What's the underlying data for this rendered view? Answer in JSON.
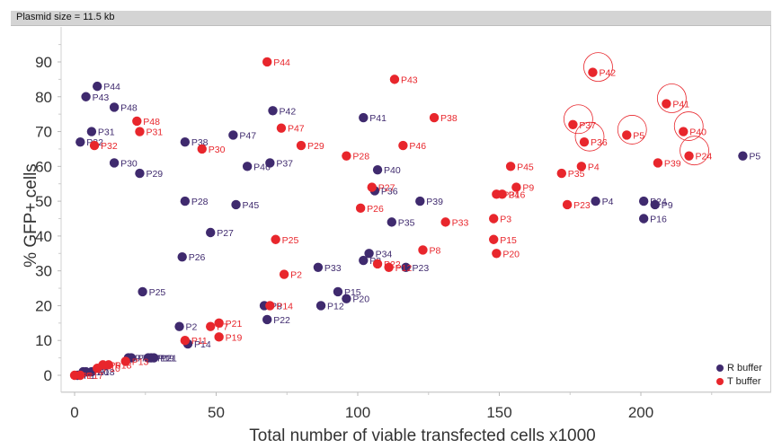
{
  "header": {
    "title": "Plasmid size = 11.5 kb"
  },
  "legend": [
    {
      "label": "R buffer",
      "color": "#3f2a6e"
    },
    {
      "label": "T buffer",
      "color": "#e8262c"
    }
  ],
  "chart_data": {
    "type": "scatter",
    "title": "Plasmid size = 11.5 kb",
    "xlabel": "Total number of viable transfected cells x1000",
    "ylabel": "% GFP+ cells",
    "xlim": [
      -5,
      245
    ],
    "ylim": [
      -5,
      95
    ],
    "xticks": [
      0,
      50,
      100,
      150,
      200
    ],
    "yticks": [
      0,
      10,
      20,
      30,
      40,
      50,
      60,
      70,
      80,
      90
    ],
    "grid": false,
    "legend_position": "bottom-right",
    "series": [
      {
        "name": "R buffer",
        "color": "#3f2a6e",
        "points": [
          {
            "label": "P1",
            "x": 1,
            "y": 0
          },
          {
            "label": "P17",
            "x": 3,
            "y": 1
          },
          {
            "label": "P10",
            "x": 4,
            "y": 1
          },
          {
            "label": "P18",
            "x": 6,
            "y": 1
          },
          {
            "label": "P7",
            "x": 19,
            "y": 5
          },
          {
            "label": "P11",
            "x": 26,
            "y": 5
          },
          {
            "label": "P19",
            "x": 27,
            "y": 5
          },
          {
            "label": "P13",
            "x": 20,
            "y": 5
          },
          {
            "label": "P21",
            "x": 28,
            "y": 5
          },
          {
            "label": "P2",
            "x": 37,
            "y": 14
          },
          {
            "label": "P14",
            "x": 40,
            "y": 9
          },
          {
            "label": "P25",
            "x": 24,
            "y": 24
          },
          {
            "label": "P26",
            "x": 38,
            "y": 34
          },
          {
            "label": "P27",
            "x": 48,
            "y": 41
          },
          {
            "label": "P28",
            "x": 39,
            "y": 50
          },
          {
            "label": "P29",
            "x": 23,
            "y": 58
          },
          {
            "label": "P30",
            "x": 14,
            "y": 61
          },
          {
            "label": "P32",
            "x": 2,
            "y": 67
          },
          {
            "label": "P31",
            "x": 6,
            "y": 70
          },
          {
            "label": "P43",
            "x": 4,
            "y": 80
          },
          {
            "label": "P44",
            "x": 8,
            "y": 83
          },
          {
            "label": "P48",
            "x": 14,
            "y": 77
          },
          {
            "label": "P38",
            "x": 39,
            "y": 67
          },
          {
            "label": "P47",
            "x": 56,
            "y": 69
          },
          {
            "label": "P46",
            "x": 61,
            "y": 60
          },
          {
            "label": "P37",
            "x": 69,
            "y": 61
          },
          {
            "label": "P42",
            "x": 70,
            "y": 76
          },
          {
            "label": "P45",
            "x": 57,
            "y": 49
          },
          {
            "label": "P8",
            "x": 67,
            "y": 20
          },
          {
            "label": "P22",
            "x": 68,
            "y": 16
          },
          {
            "label": "P33",
            "x": 86,
            "y": 31
          },
          {
            "label": "P12",
            "x": 87,
            "y": 20
          },
          {
            "label": "P15",
            "x": 93,
            "y": 24
          },
          {
            "label": "P20",
            "x": 96,
            "y": 22
          },
          {
            "label": "P34",
            "x": 104,
            "y": 35
          },
          {
            "label": "P3",
            "x": 102,
            "y": 33
          },
          {
            "label": "P23",
            "x": 117,
            "y": 31
          },
          {
            "label": "P41",
            "x": 102,
            "y": 74
          },
          {
            "label": "P40",
            "x": 107,
            "y": 59
          },
          {
            "label": "P36",
            "x": 106,
            "y": 53
          },
          {
            "label": "P39",
            "x": 122,
            "y": 50
          },
          {
            "label": "P35",
            "x": 112,
            "y": 44
          },
          {
            "label": "P4",
            "x": 184,
            "y": 50
          },
          {
            "label": "P24",
            "x": 201,
            "y": 50
          },
          {
            "label": "P9",
            "x": 205,
            "y": 49
          },
          {
            "label": "P16",
            "x": 201,
            "y": 45
          },
          {
            "label": "P5",
            "x": 236,
            "y": 63
          }
        ]
      },
      {
        "name": "T buffer",
        "color": "#e8262c",
        "points": [
          {
            "label": "P1",
            "x": 0,
            "y": 0
          },
          {
            "label": "P17",
            "x": 2,
            "y": 0
          },
          {
            "label": "P6",
            "x": 10,
            "y": 3
          },
          {
            "label": "P18",
            "x": 12,
            "y": 3
          },
          {
            "label": "P10",
            "x": 8,
            "y": 2
          },
          {
            "label": "P13",
            "x": 18,
            "y": 4
          },
          {
            "label": "P11",
            "x": 39,
            "y": 10
          },
          {
            "label": "P7",
            "x": 48,
            "y": 14
          },
          {
            "label": "P21",
            "x": 51,
            "y": 15
          },
          {
            "label": "P19",
            "x": 51,
            "y": 11
          },
          {
            "label": "P14",
            "x": 69,
            "y": 20
          },
          {
            "label": "P2",
            "x": 74,
            "y": 29
          },
          {
            "label": "P25",
            "x": 71,
            "y": 39
          },
          {
            "label": "P32",
            "x": 7,
            "y": 66
          },
          {
            "label": "P31",
            "x": 23,
            "y": 70
          },
          {
            "label": "P48",
            "x": 22,
            "y": 73
          },
          {
            "label": "P30",
            "x": 45,
            "y": 65
          },
          {
            "label": "P44",
            "x": 68,
            "y": 90
          },
          {
            "label": "P47",
            "x": 73,
            "y": 71
          },
          {
            "label": "P29",
            "x": 80,
            "y": 66
          },
          {
            "label": "P28",
            "x": 96,
            "y": 63
          },
          {
            "label": "P27",
            "x": 105,
            "y": 54
          },
          {
            "label": "P26",
            "x": 101,
            "y": 48
          },
          {
            "label": "P43",
            "x": 113,
            "y": 85
          },
          {
            "label": "P46",
            "x": 116,
            "y": 66
          },
          {
            "label": "P38",
            "x": 127,
            "y": 74
          },
          {
            "label": "P33",
            "x": 131,
            "y": 44
          },
          {
            "label": "P8",
            "x": 123,
            "y": 36
          },
          {
            "label": "P22",
            "x": 107,
            "y": 32
          },
          {
            "label": "P12",
            "x": 111,
            "y": 31
          },
          {
            "label": "P45",
            "x": 154,
            "y": 60
          },
          {
            "label": "P34",
            "x": 149,
            "y": 52
          },
          {
            "label": "P16",
            "x": 151,
            "y": 52
          },
          {
            "label": "P9",
            "x": 156,
            "y": 54
          },
          {
            "label": "P3",
            "x": 148,
            "y": 45
          },
          {
            "label": "P15",
            "x": 148,
            "y": 39
          },
          {
            "label": "P20",
            "x": 149,
            "y": 35
          },
          {
            "label": "P35",
            "x": 172,
            "y": 58
          },
          {
            "label": "P4",
            "x": 179,
            "y": 60
          },
          {
            "label": "P23",
            "x": 174,
            "y": 49
          },
          {
            "label": "P36",
            "x": 180,
            "y": 67
          },
          {
            "label": "P37",
            "x": 176,
            "y": 72
          },
          {
            "label": "P42",
            "x": 183,
            "y": 87
          },
          {
            "label": "P5",
            "x": 195,
            "y": 69
          },
          {
            "label": "P41",
            "x": 209,
            "y": 78
          },
          {
            "label": "P40",
            "x": 215,
            "y": 70
          },
          {
            "label": "P24",
            "x": 217,
            "y": 63
          },
          {
            "label": "P39",
            "x": 206,
            "y": 61
          }
        ],
        "highlighted": [
          "P42",
          "P41",
          "P37",
          "P5",
          "P40",
          "P36",
          "P24"
        ]
      }
    ]
  }
}
